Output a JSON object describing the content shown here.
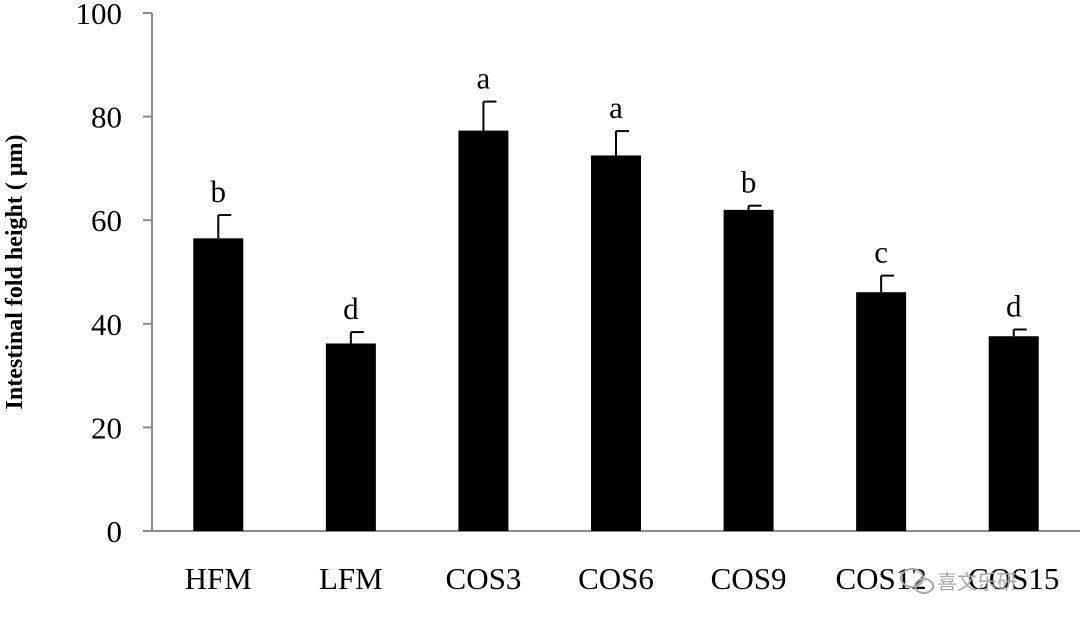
{
  "chart_data": {
    "type": "bar",
    "categories": [
      "HFM",
      "LFM",
      "COS3",
      "COS6",
      "COS9",
      "COS12",
      "COS15"
    ],
    "values": [
      56.5,
      36.2,
      77.3,
      72.5,
      62.0,
      46.1,
      37.6
    ],
    "errors": [
      4.5,
      2.2,
      5.6,
      4.7,
      0.8,
      3.2,
      1.3
    ],
    "significance": [
      "b",
      "d",
      "a",
      "a",
      "b",
      "c",
      "d"
    ],
    "title": "",
    "xlabel": "",
    "ylabel": "Intestinal fold height ( μm)",
    "ylim": [
      0,
      100
    ],
    "yticks": [
      "0",
      "20",
      "40",
      "60",
      "80",
      "100"
    ],
    "grid": false,
    "bar_color": "#000000",
    "watermark": "喜文乐研"
  }
}
